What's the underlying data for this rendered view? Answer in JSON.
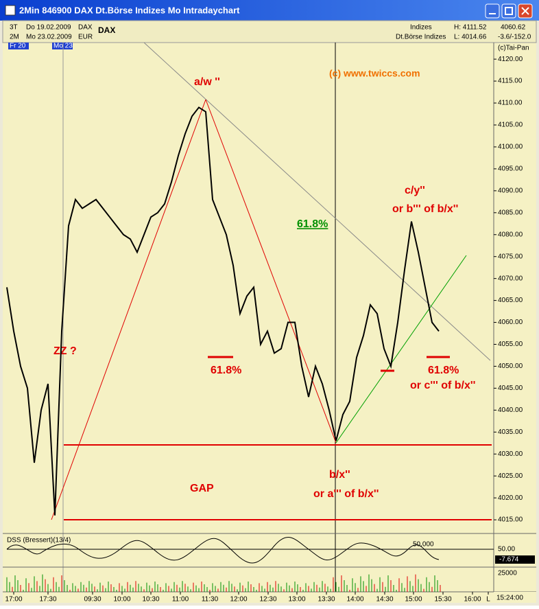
{
  "window": {
    "title": "2Min 846900 DAX Dt.Börse Indizes Mo Intradaychart"
  },
  "header": {
    "period_a": "3T",
    "date_a": "Do 19.02.2009",
    "sym_a": "DAX",
    "period_b": "2M",
    "date_b": "Mo 23.02.2009",
    "currency": "EUR",
    "name": "DAX",
    "group": "Indizes",
    "exchange": "Dt.Börse Indizes",
    "high": "H: 4111.52",
    "low": "L: 4014.66",
    "last": "4060.62",
    "change": "-3.6/-152.0",
    "copyright": "(c)Tai-Pan",
    "day_a": "Fr 20",
    "day_b": "Mo 23"
  },
  "chart_data": {
    "type": "line",
    "color": "#000000",
    "values": [
      4068,
      4058,
      4050,
      4045,
      4028,
      4040,
      4046,
      4016,
      4058,
      4082,
      4088,
      4086,
      4087,
      4088,
      4086,
      4084,
      4082,
      4080,
      4079,
      4076,
      4080,
      4084,
      4085,
      4087,
      4092,
      4098,
      4103,
      4107,
      4109,
      4108,
      4088,
      4084,
      4080,
      4073,
      4062,
      4066,
      4068,
      4055,
      4058,
      4053,
      4054,
      4060,
      4060,
      4050,
      4043,
      4050,
      4046,
      4040,
      4033,
      4039,
      4042,
      4052,
      4057,
      4064,
      4062,
      4054,
      4050,
      4060,
      4072,
      4083,
      4076,
      4068,
      4060,
      4058
    ],
    "ylim": [
      4012.2,
      4121.9
    ],
    "yticks": [
      {
        "value": 4015,
        "label": "4015.00"
      },
      {
        "value": 4020,
        "label": "4020.00"
      },
      {
        "value": 4025,
        "label": "4025.00"
      },
      {
        "value": 4030,
        "label": "4030.00"
      },
      {
        "value": 4035,
        "label": "4035.00"
      },
      {
        "value": 4040,
        "label": "4040.00"
      },
      {
        "value": 4045,
        "label": "4045.00"
      },
      {
        "value": 4050,
        "label": "4050.00"
      },
      {
        "value": 4055,
        "label": "4055.00"
      },
      {
        "value": 4060,
        "label": "4060.00"
      },
      {
        "value": 4065,
        "label": "4065.00"
      },
      {
        "value": 4070,
        "label": "4070.00"
      },
      {
        "value": 4075,
        "label": "4075.00"
      },
      {
        "value": 4080,
        "label": "4080.00"
      },
      {
        "value": 4085,
        "label": "4085.00"
      },
      {
        "value": 4090,
        "label": "4090.00"
      },
      {
        "value": 4095,
        "label": "4095.00"
      },
      {
        "value": 4100,
        "label": "4100.00"
      },
      {
        "value": 4105,
        "label": "4105.00"
      },
      {
        "value": 4110,
        "label": "4110.00"
      },
      {
        "value": 4115,
        "label": "4115.00"
      },
      {
        "value": 4120,
        "label": "4120.00"
      }
    ],
    "time_labels": [
      "17:00",
      "17:30",
      "09:30",
      "10:00",
      "10:30",
      "11:00",
      "11:30",
      "12:00",
      "12:30",
      "13:00",
      "13:30",
      "14:00",
      "14:30",
      "15:00",
      "15:30",
      "16:00",
      "L"
    ],
    "annotations": {
      "copyright": "(c) www.twiccs.com",
      "aw": "a/w ''",
      "zz": "ZZ ?",
      "fib_green": "61.8%",
      "cy": "c/y''",
      "cy_alt": "or b''' of b/x''",
      "fib_left": "61.8%",
      "fib_right": "61.8%",
      "c_alt": "or c''' of b/x''",
      "gap": "GAP",
      "bx": "b/x''",
      "bx_alt": "or a''' of b/x''"
    }
  },
  "oscillator": {
    "label": "DSS (Bressert)(13/4)",
    "level": "50.000",
    "tick": "50.00",
    "current": "-7.674"
  },
  "volume": {
    "tick": "25000"
  },
  "clock": "15:24:00"
}
